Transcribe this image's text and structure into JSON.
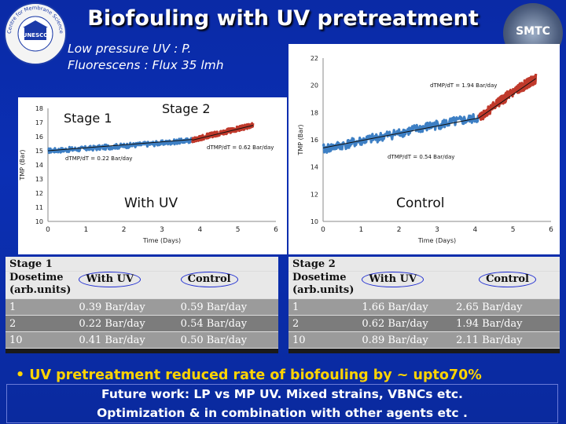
{
  "slide": {
    "title": "Biofouling with UV pretreatment",
    "subtitle_line1": "Low pressure UV : P.",
    "subtitle_line2": "Fluorescens : Flux 35 lmh",
    "logo_left_text": "Centre for Membrane Science and Technology",
    "logo_right_text": "SMTC",
    "bullet": "• UV pretreatment reduced rate of biofouling by ~ upto70%",
    "future_line1": "Future work: LP vs MP UV. Mixed strains, VBNCs etc.",
    "future_line2": "Optimization & in combination with other agents etc ."
  },
  "chart_data": [
    {
      "type": "line",
      "ylabel": "TMP (Bar)",
      "xlabel": "Time (Days)",
      "xlim": [
        0,
        6
      ],
      "ylim": [
        10,
        18
      ],
      "xticks": [
        "0",
        "1",
        "2",
        "3",
        "4",
        "5",
        "6"
      ],
      "yticks": [
        "10",
        "11",
        "12",
        "13",
        "14",
        "15",
        "16",
        "17",
        "18"
      ],
      "stage1_label": "Stage 1",
      "stage2_label": "Stage 2",
      "center_label": "With UV",
      "annotation_stage1": "dTMP/dT = 0.22 Bar/day",
      "annotation_stage2": "dTMP/dT = 0.62 Bar/day",
      "series": [
        {
          "color": "#3d7fc4",
          "x": [
            0,
            1,
            2,
            3,
            3.8
          ],
          "y": [
            15.0,
            15.15,
            15.35,
            15.55,
            15.75
          ]
        },
        {
          "color": "#c0392b",
          "x": [
            3.8,
            4.2,
            4.6,
            5.0,
            5.4
          ],
          "y": [
            15.75,
            16.05,
            16.3,
            16.55,
            16.8
          ]
        }
      ],
      "trend_lines": [
        {
          "x": [
            0,
            3.8
          ],
          "y": [
            15.0,
            15.8
          ]
        },
        {
          "x": [
            3.8,
            5.4
          ],
          "y": [
            15.75,
            16.8
          ]
        }
      ]
    },
    {
      "type": "line",
      "ylabel": "TMP (Bar)",
      "xlabel": "Time (Days)",
      "xlim": [
        0,
        6
      ],
      "ylim": [
        10,
        22
      ],
      "xticks": [
        "0",
        "1",
        "2",
        "3",
        "4",
        "5",
        "6"
      ],
      "yticks": [
        "10",
        "12",
        "14",
        "16",
        "18",
        "20",
        "22"
      ],
      "center_label": "Control",
      "annotation_stage1": "dTMP/dT = 0.54 Bar/day",
      "annotation_stage2": "dTMP/dT = 1.94 Bar/day",
      "series": [
        {
          "color": "#3d7fc4",
          "x": [
            0,
            1,
            2,
            3,
            4.1
          ],
          "y": [
            15.3,
            15.9,
            16.5,
            17.1,
            17.6
          ]
        },
        {
          "color": "#c0392b",
          "x": [
            4.1,
            4.5,
            4.9,
            5.3,
            5.6
          ],
          "y": [
            17.6,
            18.5,
            19.3,
            20.0,
            20.5
          ]
        }
      ],
      "trend_lines": [
        {
          "x": [
            0,
            4.1
          ],
          "y": [
            15.4,
            17.6
          ]
        },
        {
          "x": [
            4.1,
            5.6
          ],
          "y": [
            17.6,
            20.5
          ]
        }
      ]
    }
  ],
  "tables": {
    "stage1": {
      "title": "Stage 1",
      "header": [
        "Dosetime",
        "With UV",
        "Control"
      ],
      "subheader": "(arb.units)",
      "rows": [
        [
          "1",
          "0.39 Bar/day",
          "0.59 Bar/day"
        ],
        [
          "2",
          "0.22 Bar/day",
          "0.54 Bar/day"
        ],
        [
          "10",
          "0.41 Bar/day",
          "0.50 Bar/day"
        ]
      ]
    },
    "stage2": {
      "title": "Stage 2",
      "header": [
        "Dosetime",
        "With UV",
        "Control"
      ],
      "subheader": "(arb.units)",
      "rows": [
        [
          "1",
          "1.66 Bar/day",
          "2.65 Bar/day"
        ],
        [
          "2",
          "0.62 Bar/day",
          "1.94 Bar/day"
        ],
        [
          "10",
          "0.89 Bar/day",
          "2.11 Bar/day"
        ]
      ]
    }
  }
}
